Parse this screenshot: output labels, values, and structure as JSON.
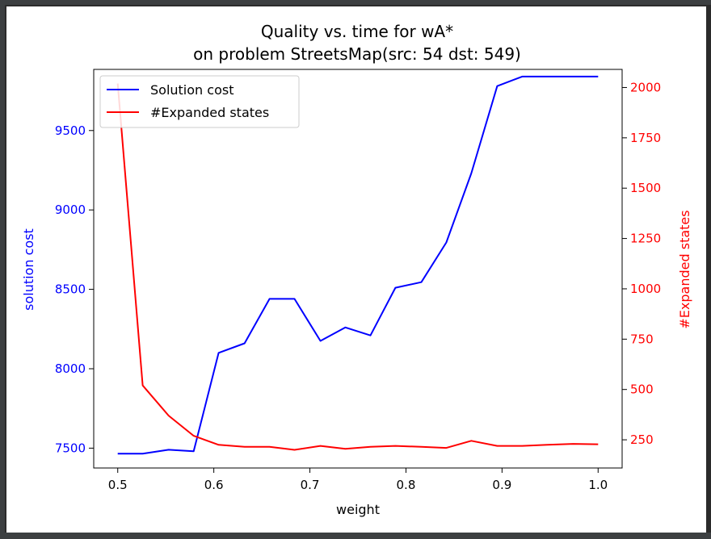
{
  "chart_data": {
    "type": "line",
    "title_line1": "Quality vs. time for wA*",
    "title_line2": "on problem StreetsMap(src: 54 dst: 549)",
    "xlabel": "weight",
    "ylabel_left": "solution cost",
    "ylabel_right": "#Expanded states",
    "xlim": [
      0.475,
      1.025
    ],
    "ylim_left": [
      7375,
      9885
    ],
    "ylim_right": [
      110,
      2090
    ],
    "x_ticks": [
      "0.5",
      "0.6",
      "0.7",
      "0.8",
      "0.9",
      "1.0"
    ],
    "x_tick_values": [
      0.5,
      0.6,
      0.7,
      0.8,
      0.9,
      1.0
    ],
    "y_left_ticks": [
      "7500",
      "8000",
      "8500",
      "9000",
      "9500"
    ],
    "y_left_tick_values": [
      7500,
      8000,
      8500,
      9000,
      9500
    ],
    "y_right_ticks": [
      "250",
      "500",
      "750",
      "1000",
      "1250",
      "1500",
      "1750",
      "2000"
    ],
    "y_right_tick_values": [
      250,
      500,
      750,
      1000,
      1250,
      1500,
      1750,
      2000
    ],
    "legend_position": "top-left",
    "x": [
      0.5,
      0.526,
      0.553,
      0.579,
      0.605,
      0.632,
      0.658,
      0.684,
      0.711,
      0.737,
      0.763,
      0.789,
      0.816,
      0.842,
      0.868,
      0.895,
      0.921,
      0.947,
      0.974,
      1.0
    ],
    "series": [
      {
        "name": "Solution cost",
        "axis": "left",
        "color": "#0000ff",
        "values": [
          7465,
          7465,
          7490,
          7480,
          8100,
          8160,
          8440,
          8440,
          8175,
          8260,
          8210,
          8510,
          8545,
          8795,
          9230,
          9780,
          9840,
          9840,
          9840,
          9840
        ]
      },
      {
        "name": "#Expanded states",
        "axis": "right",
        "color": "#ff0000",
        "values": [
          2020,
          520,
          370,
          270,
          225,
          215,
          215,
          200,
          220,
          205,
          215,
          220,
          215,
          210,
          245,
          220,
          220,
          225,
          230,
          228
        ]
      }
    ]
  }
}
